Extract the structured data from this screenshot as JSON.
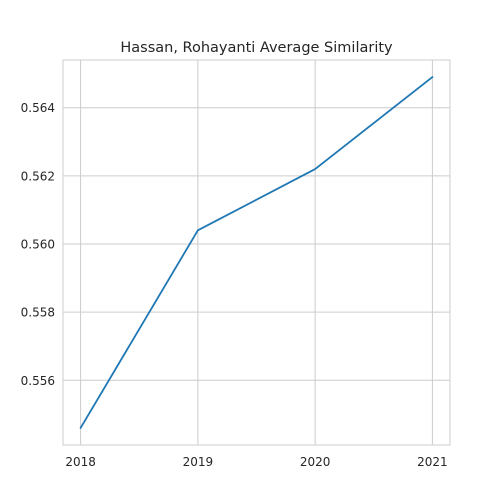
{
  "chart_data": {
    "type": "line",
    "title": "Hassan, Rohayanti Average Similarity",
    "xlabel": "",
    "ylabel": "",
    "x": [
      "2018",
      "2019",
      "2020",
      "2021"
    ],
    "series": [
      {
        "values": [
          0.5546,
          0.5604,
          0.5622,
          0.5649
        ]
      }
    ],
    "xlim": [
      2017.85,
      2021.15
    ],
    "ylim": [
      0.5541,
      0.5654
    ],
    "yticks": [
      "0.556",
      "0.558",
      "0.560",
      "0.562",
      "0.564"
    ],
    "grid": true,
    "legend": "none",
    "colors": {
      "line": "#1f77b4",
      "grid": "#cccccc",
      "spine": "#cccccc",
      "text": "#262626",
      "background": "#ffffff"
    }
  }
}
